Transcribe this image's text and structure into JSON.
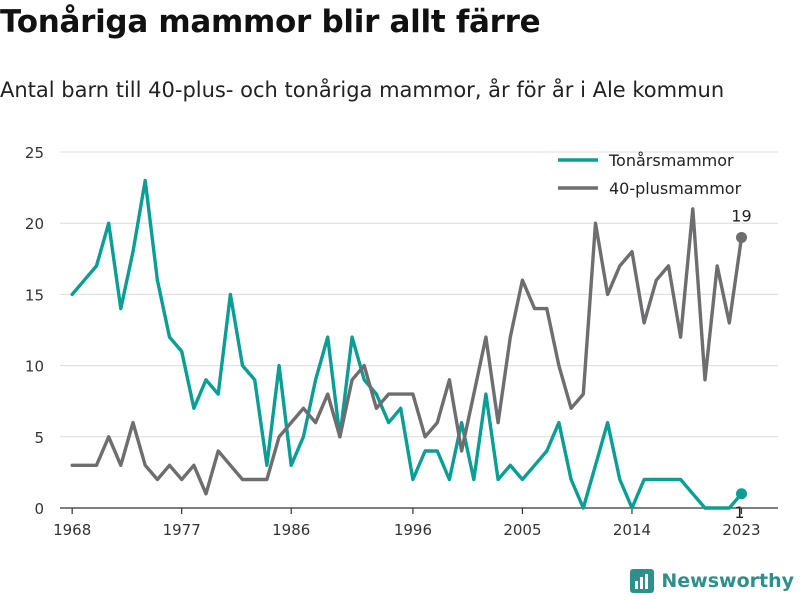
{
  "title": "Tonåriga mammor blir allt färre",
  "subtitle": "Antal barn till 40-plus- och tonåriga mammor, år för år i Ale kommun",
  "brand": {
    "name": "Newsworthy",
    "color": "#2f8f8a"
  },
  "chart_data": {
    "type": "line",
    "x": [
      1968,
      1969,
      1970,
      1971,
      1972,
      1973,
      1974,
      1975,
      1976,
      1977,
      1978,
      1979,
      1980,
      1981,
      1982,
      1983,
      1984,
      1985,
      1986,
      1987,
      1988,
      1989,
      1990,
      1991,
      1992,
      1993,
      1994,
      1995,
      1996,
      1997,
      1998,
      1999,
      2000,
      2001,
      2002,
      2003,
      2004,
      2005,
      2006,
      2007,
      2008,
      2009,
      2010,
      2011,
      2012,
      2013,
      2014,
      2015,
      2016,
      2017,
      2018,
      2019,
      2020,
      2021,
      2022,
      2023
    ],
    "series": [
      {
        "name": "Tonårsmammor",
        "color": "#0a9e94",
        "values": [
          15,
          16,
          17,
          20,
          14,
          18,
          23,
          16,
          12,
          11,
          7,
          9,
          8,
          15,
          10,
          9,
          3,
          10,
          3,
          5,
          9,
          12,
          5,
          12,
          9,
          8,
          6,
          7,
          2,
          4,
          4,
          2,
          6,
          2,
          8,
          2,
          3,
          2,
          3,
          4,
          6,
          2,
          0,
          3,
          6,
          2,
          0,
          2,
          2,
          2,
          2,
          1,
          0,
          0,
          0,
          1
        ]
      },
      {
        "name": "40-plusmammor",
        "color": "#6e6e70",
        "values": [
          3,
          3,
          3,
          5,
          3,
          6,
          3,
          2,
          3,
          2,
          3,
          1,
          4,
          3,
          2,
          2,
          2,
          5,
          6,
          7,
          6,
          8,
          5,
          9,
          10,
          7,
          8,
          8,
          8,
          5,
          6,
          9,
          4,
          8,
          12,
          6,
          12,
          16,
          14,
          14,
          10,
          7,
          8,
          20,
          15,
          17,
          18,
          13,
          16,
          17,
          12,
          21,
          9,
          17,
          13,
          19
        ]
      }
    ],
    "end_labels": [
      "19",
      "1"
    ],
    "xticks": [
      "1968",
      "1977",
      "1986",
      "1996",
      "2005",
      "2014",
      "2023"
    ],
    "yticks": [
      "0",
      "5",
      "10",
      "15",
      "20",
      "25"
    ],
    "xlim": [
      1967,
      2026
    ],
    "ylim": [
      0,
      25
    ],
    "grid": true,
    "legend": "top-right"
  }
}
